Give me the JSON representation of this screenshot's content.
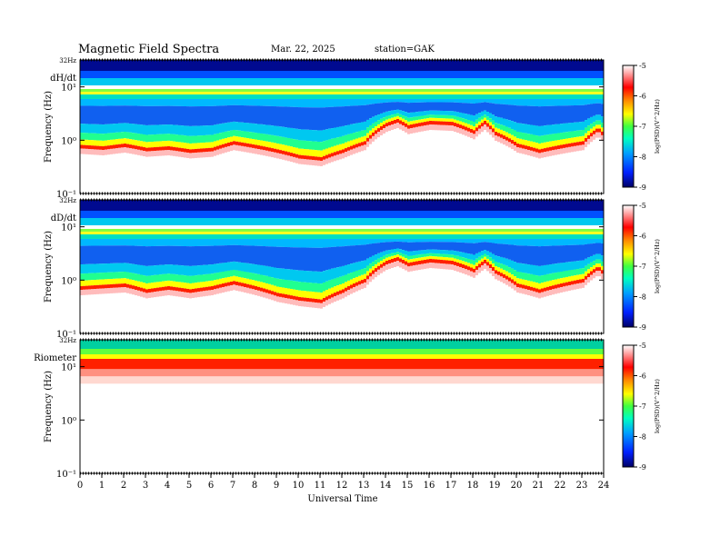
{
  "header": {
    "title": "Magnetic  Field  Spectra",
    "date": "Mar. 22, 2025",
    "station": "station=GAK"
  },
  "panels": [
    {
      "label": "dH/dt",
      "ylabel": "Frequency  (Hz)",
      "top_tick": "32Hz",
      "yticks": [
        "10¹",
        "10⁰",
        "10⁻¹"
      ],
      "cb_ticks": [
        "-5",
        "-6",
        "-7",
        "-8",
        "-9"
      ],
      "cb_label": "log(PSD)(V^2/Hz)"
    },
    {
      "label": "dD/dt",
      "ylabel": "Frequency  (Hz)",
      "top_tick": "32Hz",
      "yticks": [
        "10¹",
        "10⁰",
        "10⁻¹"
      ],
      "cb_ticks": [
        "-5",
        "-6",
        "-7",
        "-8",
        "-9"
      ],
      "cb_label": "log(PSD)(V^2/Hz)"
    },
    {
      "label": "Riometer",
      "ylabel": "Frequency  (Hz)",
      "top_tick": "32Hz",
      "yticks": [
        "10¹",
        "10⁰",
        "10⁻¹"
      ],
      "cb_ticks": [
        "-5",
        "-6",
        "-7",
        "-8",
        "-9"
      ],
      "cb_label": "log(PSD)(V^2/Hz)"
    }
  ],
  "xaxis": {
    "label": "Universal Time",
    "ticks": [
      "0",
      "1",
      "2",
      "3",
      "4",
      "5",
      "6",
      "7",
      "8",
      "9",
      "10",
      "11",
      "12",
      "13",
      "14",
      "15",
      "16",
      "17",
      "18",
      "19",
      "20",
      "21",
      "22",
      "23",
      "24"
    ]
  },
  "chart_data": {
    "type": "heatmap",
    "title": "Magnetic  Field  Spectra",
    "xlabel": "Universal Time",
    "ylabel": "Frequency  (Hz)",
    "xlim": [
      0,
      24
    ],
    "ylim_hz": [
      0.1,
      32
    ],
    "yscale": "log",
    "colorbar": {
      "label": "log(PSD)(V^2/Hz)",
      "range": [
        -9,
        -5
      ],
      "colormap": [
        "#000080",
        "#0040ff",
        "#00c0ff",
        "#00ff80",
        "#ffff00",
        "#ff0000",
        "#ffffff"
      ]
    },
    "panels": [
      {
        "name": "dH/dt",
        "band_freq_hz": 7.8,
        "noise_floor_hz": [
          [
            0,
            0.85
          ],
          [
            1,
            0.8
          ],
          [
            2,
            0.9
          ],
          [
            3,
            0.75
          ],
          [
            4,
            0.8
          ],
          [
            5,
            0.7
          ],
          [
            6,
            0.75
          ],
          [
            7,
            1.0
          ],
          [
            8,
            0.85
          ],
          [
            9,
            0.7
          ],
          [
            10,
            0.55
          ],
          [
            11,
            0.5
          ],
          [
            12,
            0.7
          ],
          [
            13,
            1.0
          ],
          [
            14,
            2.2
          ],
          [
            14.5,
            2.6
          ],
          [
            15,
            2.0
          ],
          [
            16,
            2.4
          ],
          [
            17,
            2.3
          ],
          [
            18,
            1.6
          ],
          [
            18.5,
            2.4
          ],
          [
            19,
            1.5
          ],
          [
            20,
            0.9
          ],
          [
            21,
            0.7
          ],
          [
            22,
            0.85
          ],
          [
            23,
            1.0
          ],
          [
            23.7,
            1.8
          ],
          [
            24,
            1.3
          ]
        ]
      },
      {
        "name": "dD/dt",
        "band_freq_hz": 7.8,
        "noise_floor_hz": [
          [
            0,
            0.8
          ],
          [
            1,
            0.85
          ],
          [
            2,
            0.9
          ],
          [
            3,
            0.7
          ],
          [
            4,
            0.8
          ],
          [
            5,
            0.7
          ],
          [
            6,
            0.8
          ],
          [
            7,
            1.0
          ],
          [
            8,
            0.8
          ],
          [
            9,
            0.6
          ],
          [
            10,
            0.5
          ],
          [
            11,
            0.45
          ],
          [
            12,
            0.7
          ],
          [
            13,
            1.1
          ],
          [
            14,
            2.4
          ],
          [
            14.5,
            2.8
          ],
          [
            15,
            2.2
          ],
          [
            16,
            2.6
          ],
          [
            17,
            2.4
          ],
          [
            18,
            1.7
          ],
          [
            18.5,
            2.5
          ],
          [
            19,
            1.6
          ],
          [
            20,
            0.9
          ],
          [
            21,
            0.7
          ],
          [
            22,
            0.9
          ],
          [
            23,
            1.1
          ],
          [
            23.7,
            1.9
          ],
          [
            24,
            1.4
          ]
        ]
      },
      {
        "name": "Riometer",
        "band_freq_hz": 14,
        "noise_floor_hz": [
          [
            0,
            9
          ],
          [
            6,
            9
          ],
          [
            12,
            9
          ],
          [
            18,
            9
          ],
          [
            24,
            9
          ]
        ]
      }
    ]
  }
}
